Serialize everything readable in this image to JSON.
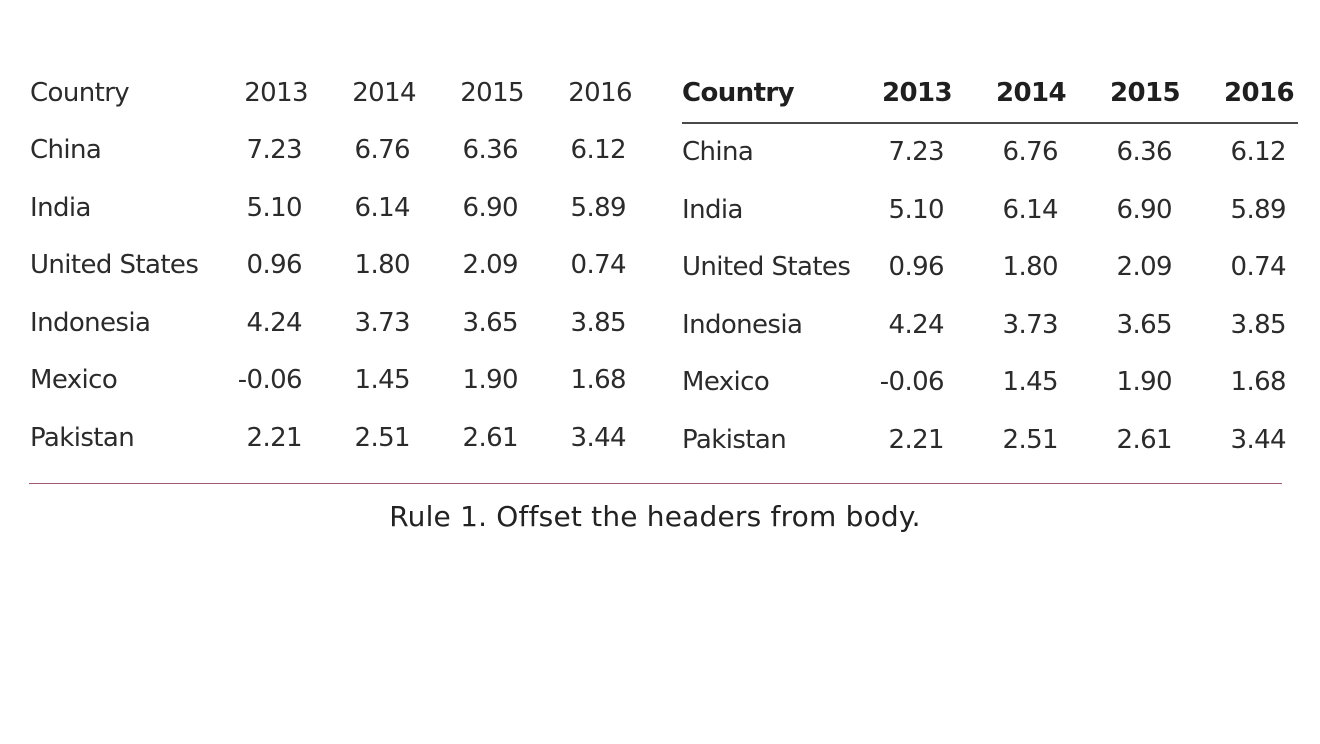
{
  "chart_data": [
    {
      "type": "table",
      "header_style": "plain",
      "columns": [
        "Country",
        "2013",
        "2014",
        "2015",
        "2016"
      ],
      "rows": [
        {
          "country": "China",
          "values": [
            "7.23",
            "6.76",
            "6.36",
            "6.12"
          ]
        },
        {
          "country": "India",
          "values": [
            "5.10",
            "6.14",
            "6.90",
            "5.89"
          ]
        },
        {
          "country": "United States",
          "values": [
            "0.96",
            "1.80",
            "2.09",
            "0.74"
          ]
        },
        {
          "country": "Indonesia",
          "values": [
            "4.24",
            "3.73",
            "3.65",
            "3.85"
          ]
        },
        {
          "country": "Mexico",
          "values": [
            "-0.06",
            "1.45",
            "1.90",
            "1.68"
          ]
        },
        {
          "country": "Pakistan",
          "values": [
            "2.21",
            "2.51",
            "2.61",
            "3.44"
          ]
        }
      ]
    },
    {
      "type": "table",
      "header_style": "bold with rule below",
      "columns": [
        "Country",
        "2013",
        "2014",
        "2015",
        "2016"
      ],
      "rows": [
        {
          "country": "China",
          "values": [
            "7.23",
            "6.76",
            "6.36",
            "6.12"
          ]
        },
        {
          "country": "India",
          "values": [
            "5.10",
            "6.14",
            "6.90",
            "5.89"
          ]
        },
        {
          "country": "United States",
          "values": [
            "0.96",
            "1.80",
            "2.09",
            "0.74"
          ]
        },
        {
          "country": "Indonesia",
          "values": [
            "4.24",
            "3.73",
            "3.65",
            "3.85"
          ]
        },
        {
          "country": "Mexico",
          "values": [
            "-0.06",
            "1.45",
            "1.90",
            "1.68"
          ]
        },
        {
          "country": "Pakistan",
          "values": [
            "2.21",
            "2.51",
            "2.61",
            "3.44"
          ]
        }
      ]
    }
  ],
  "caption": "Rule 1. Offset the headers from body.",
  "colors": {
    "text": "#2b2b2b",
    "header_rule": "#4a4a4a",
    "separator": "#a05a6e"
  }
}
